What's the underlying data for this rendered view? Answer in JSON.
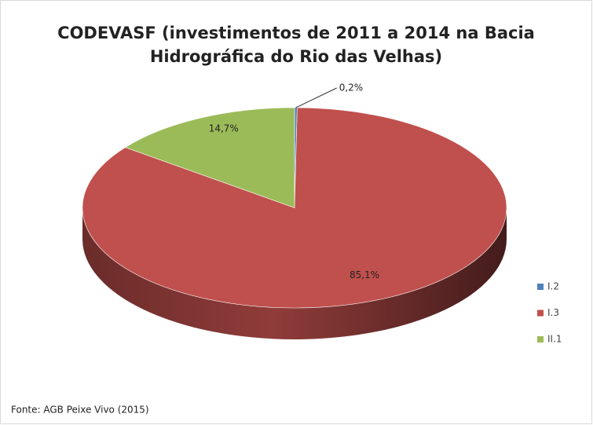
{
  "chart_data": {
    "type": "pie",
    "title": [
      "CODEVASF (investimentos de 2011 a 2014 na Bacia",
      "Hidrográfica do Rio das Velhas)"
    ],
    "categories": [
      "I.2",
      "I.3",
      "II.1"
    ],
    "values": [
      0.2,
      85.1,
      14.7
    ],
    "value_labels": [
      "0,2%",
      "85,1%",
      "14,7%"
    ],
    "colors": [
      "#4f81bd",
      "#c0504d",
      "#9bbb59"
    ],
    "legend": "right",
    "source": "Fonte: AGB Peixe Vivo (2015)"
  }
}
